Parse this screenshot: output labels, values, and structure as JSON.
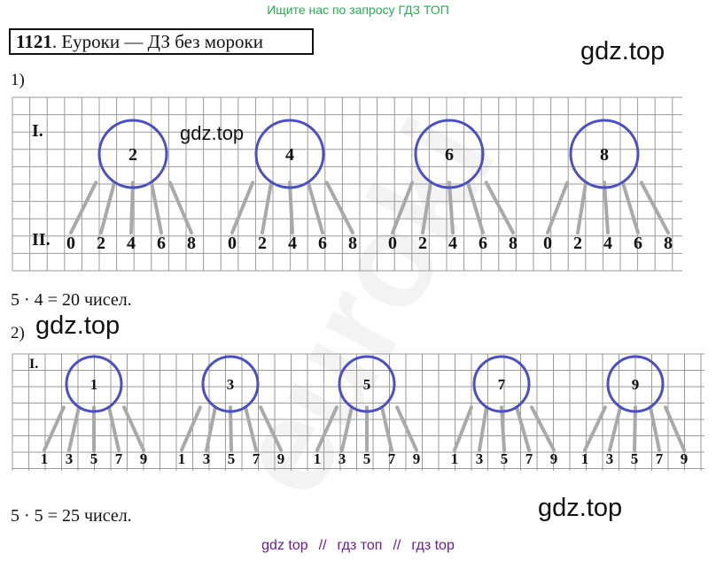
{
  "banner": "Ищите нас по запросу ГДЗ ТОП",
  "task": {
    "number": "1121",
    "rest": ". Еуроки  —  ДЗ без мороки"
  },
  "watermarks": {
    "w1": "gdz.top",
    "w2": "gdz.top",
    "w3": "gdz.top",
    "w4": "gdz.top"
  },
  "part1": {
    "label": "1)",
    "row1_label": "I.",
    "row2_label": "II.",
    "circles": [
      "2",
      "4",
      "6",
      "8"
    ],
    "digits": [
      "0",
      "2",
      "4",
      "6",
      "8"
    ],
    "result": "5 · 4 = 20 чисел."
  },
  "part2": {
    "label": "2)",
    "row1_label": "I.",
    "circles": [
      "1",
      "3",
      "5",
      "7",
      "9"
    ],
    "digits": [
      "1",
      "3",
      "5",
      "7",
      "9"
    ],
    "result": "5 · 5 = 25 чисел."
  },
  "footer": [
    "gdz top",
    "//",
    "гдз топ",
    "//",
    "гдз top"
  ],
  "colors": {
    "circle": "#4a4fc4",
    "line": "#a9a9a9",
    "grid": "#9a9a9a",
    "banner": "#22b14c",
    "footer": "#6a1b9a"
  }
}
